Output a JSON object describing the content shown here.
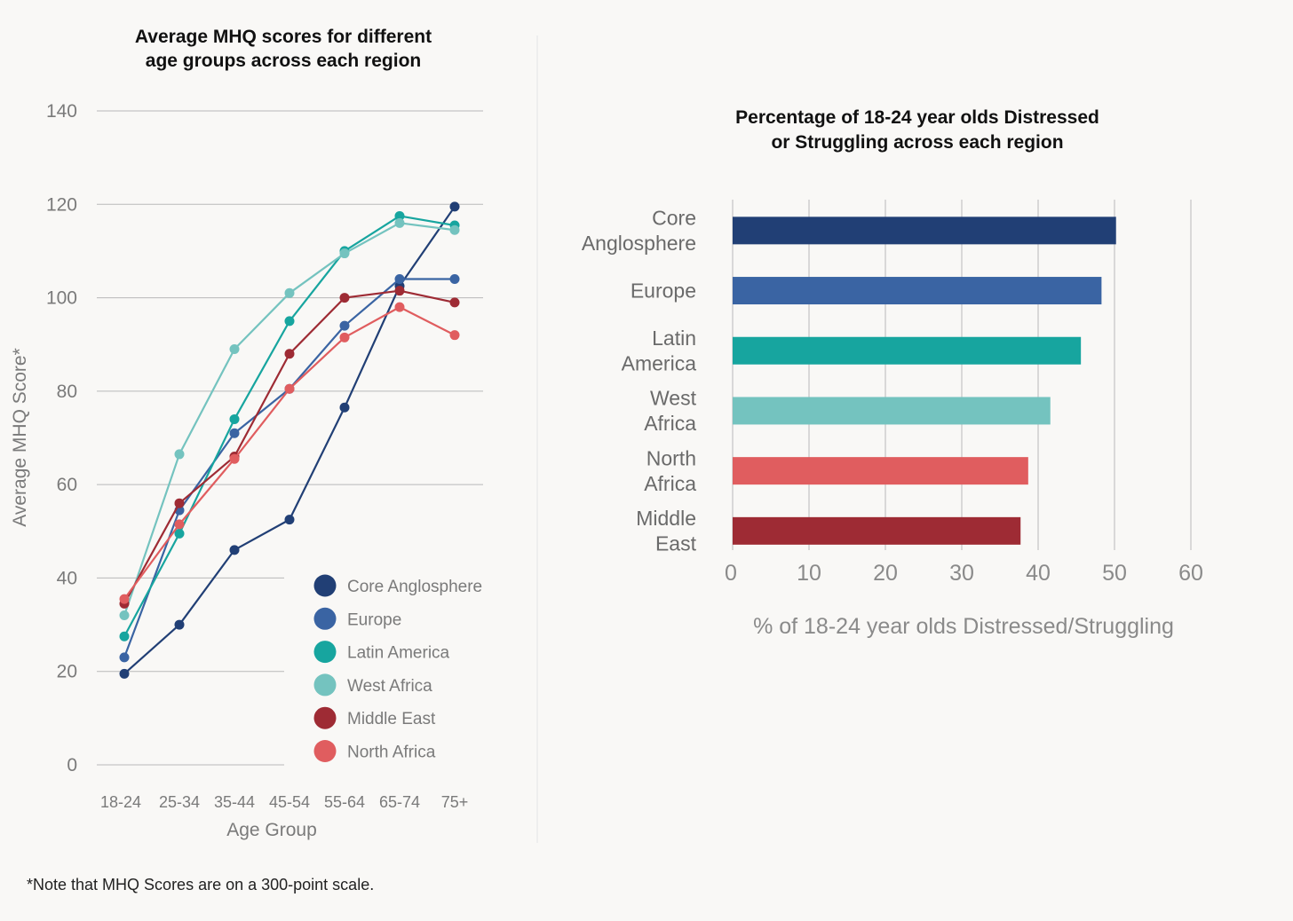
{
  "colors": {
    "Core Anglosphere": "#213f75",
    "Europe": "#3a64a3",
    "Latin America": "#17a59f",
    "West Africa": "#74c3bf",
    "Middle East": "#9e2b34",
    "North Africa": "#e05d5f"
  },
  "chart_data": [
    {
      "type": "line",
      "title_lines": [
        "Average MHQ scores for different",
        "age groups across each region"
      ],
      "xlabel": "Age Group",
      "ylabel": "Average MHQ Score*",
      "categories": [
        "18-24",
        "25-34",
        "35-44",
        "45-54",
        "55-64",
        "65-74",
        "75+"
      ],
      "ylim": [
        0,
        140
      ],
      "yticks": [
        0,
        20,
        40,
        60,
        80,
        100,
        120,
        140
      ],
      "grid": true,
      "legend_position": "bottom-right",
      "series": [
        {
          "name": "Core Anglosphere",
          "values": [
            19.5,
            30,
            46,
            52.5,
            76.5,
            102.5,
            119.5
          ]
        },
        {
          "name": "Europe",
          "values": [
            23,
            54.5,
            71,
            80.5,
            94,
            104,
            104
          ]
        },
        {
          "name": "Latin America",
          "values": [
            27.5,
            49.5,
            74,
            95,
            110,
            117.5,
            115.5
          ]
        },
        {
          "name": "West Africa",
          "values": [
            32,
            66.5,
            89,
            101,
            109.5,
            116,
            114.5
          ]
        },
        {
          "name": "Middle East",
          "values": [
            34.5,
            56,
            66,
            88,
            100,
            101.5,
            99
          ]
        },
        {
          "name": "North Africa",
          "values": [
            35.5,
            51.5,
            65.5,
            80.5,
            91.5,
            98,
            92
          ]
        }
      ]
    },
    {
      "type": "bar",
      "orientation": "horizontal",
      "title_lines": [
        "Percentage of 18-24 year olds Distressed",
        "or Struggling across each region"
      ],
      "xlabel": "% of 18-24 year olds Distressed/Struggling",
      "ylabel": "",
      "categories": [
        {
          "name": "Core Anglosphere",
          "label_lines": [
            "Core",
            "Anglosphere"
          ]
        },
        {
          "name": "Europe",
          "label_lines": [
            "Europe"
          ]
        },
        {
          "name": "Latin America",
          "label_lines": [
            "Latin",
            "America"
          ]
        },
        {
          "name": "West Africa",
          "label_lines": [
            "West",
            "Africa"
          ]
        },
        {
          "name": "North Africa",
          "label_lines": [
            "North",
            "Africa"
          ]
        },
        {
          "name": "Middle East",
          "label_lines": [
            "Middle",
            "East"
          ]
        }
      ],
      "values": [
        50.2,
        48.3,
        45.6,
        41.6,
        38.7,
        37.7
      ],
      "xlim": [
        0,
        60
      ],
      "xticks": [
        0,
        10,
        20,
        30,
        40,
        50,
        60
      ],
      "grid": true
    }
  ],
  "footnote": "*Note that MHQ Scores are on a 300-point scale."
}
